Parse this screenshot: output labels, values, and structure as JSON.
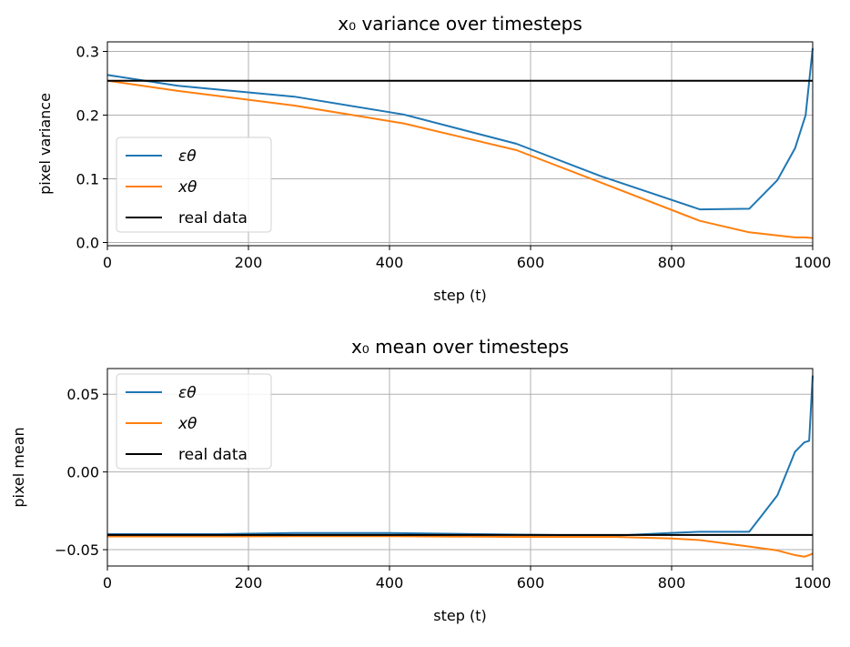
{
  "chart_data": [
    {
      "type": "line",
      "title": "x₀ variance over timesteps",
      "xlabel": "step (t)",
      "ylabel": "pixel variance",
      "xlim": [
        0,
        1000
      ],
      "ylim": [
        -0.005,
        0.315
      ],
      "xticks": [
        0,
        200,
        400,
        600,
        800,
        1000
      ],
      "xtick_labels": [
        "0",
        "200",
        "400",
        "600",
        "800",
        "1000"
      ],
      "yticks": [
        0.0,
        0.1,
        0.2,
        0.3
      ],
      "ytick_labels": [
        "0.0",
        "0.1",
        "0.2",
        "0.3"
      ],
      "grid": true,
      "legend_position": "lower-left",
      "series": [
        {
          "name": "εθ",
          "color": "#1f77b4",
          "x": [
            0,
            100,
            265,
            420,
            580,
            700,
            840,
            910,
            950,
            975,
            990,
            1000
          ],
          "y": [
            0.263,
            0.246,
            0.229,
            0.201,
            0.155,
            0.104,
            0.052,
            0.053,
            0.098,
            0.148,
            0.2,
            0.305
          ]
        },
        {
          "name": "xθ",
          "color": "#ff7f0e",
          "x": [
            0,
            100,
            265,
            420,
            580,
            700,
            840,
            910,
            950,
            975,
            990,
            1000
          ],
          "y": [
            0.254,
            0.238,
            0.215,
            0.187,
            0.145,
            0.094,
            0.034,
            0.016,
            0.011,
            0.008,
            0.008,
            0.007
          ]
        },
        {
          "name": "real data",
          "color": "#000000",
          "x": [
            0,
            1000
          ],
          "y": [
            0.254,
            0.254
          ]
        }
      ]
    },
    {
      "type": "line",
      "title": "x₀ mean over timesteps",
      "xlabel": "step (t)",
      "ylabel": "pixel mean",
      "xlim": [
        0,
        1000
      ],
      "ylim": [
        -0.0605,
        0.0665
      ],
      "xticks": [
        0,
        200,
        400,
        600,
        800,
        1000
      ],
      "xtick_labels": [
        "0",
        "200",
        "400",
        "600",
        "800",
        "1000"
      ],
      "yticks": [
        -0.05,
        0.0,
        0.05
      ],
      "ytick_labels": [
        "−0.05",
        "0.00",
        "0.05"
      ],
      "grid": true,
      "legend_position": "upper-left",
      "series": [
        {
          "name": "εθ",
          "color": "#1f77b4",
          "x": [
            0,
            150,
            265,
            400,
            580,
            720,
            800,
            840,
            910,
            950,
            975,
            988,
            995,
            1000
          ],
          "y": [
            -0.04,
            -0.04,
            -0.0393,
            -0.0393,
            -0.0403,
            -0.041,
            -0.0392,
            -0.0385,
            -0.0385,
            -0.015,
            0.013,
            0.019,
            0.02,
            0.062
          ]
        },
        {
          "name": "xθ",
          "color": "#ff7f0e",
          "x": [
            0,
            150,
            265,
            400,
            580,
            720,
            800,
            840,
            910,
            950,
            975,
            988,
            995,
            1000
          ],
          "y": [
            -0.0415,
            -0.0415,
            -0.0413,
            -0.0413,
            -0.0418,
            -0.0418,
            -0.0428,
            -0.0438,
            -0.048,
            -0.0505,
            -0.0535,
            -0.0545,
            -0.0535,
            -0.0525
          ]
        },
        {
          "name": "real data",
          "color": "#000000",
          "x": [
            0,
            1000
          ],
          "y": [
            -0.0405,
            -0.0405
          ]
        }
      ]
    }
  ]
}
